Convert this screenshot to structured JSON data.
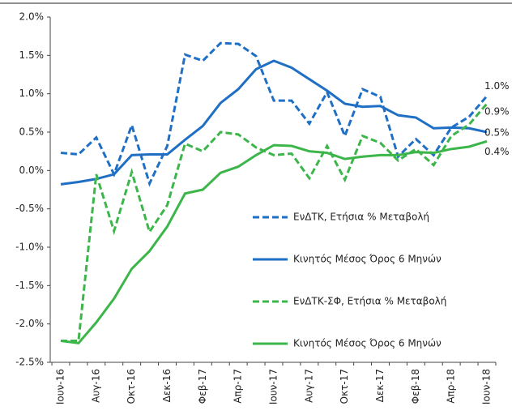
{
  "chart_data": {
    "type": "line",
    "categories": [
      "Ιουν-16",
      null,
      "Αυγ-16",
      null,
      "Οκτ-16",
      null,
      "Δεκ-16",
      null,
      "Φεβ-17",
      null,
      "Απρ-17",
      null,
      "Ιουν-17",
      null,
      "Αυγ-17",
      null,
      "Οκτ-17",
      null,
      "Δεκ-17",
      null,
      "Φεβ-18",
      null,
      "Απρ-18",
      null,
      "Ιουν-18"
    ],
    "series": [
      {
        "name": "ΕνΔΤΚ, Ετήσια % Μεταβολή",
        "color": "#1f6fc5",
        "dashed": true,
        "values": [
          0.23,
          0.21,
          0.43,
          -0.05,
          0.59,
          -0.17,
          0.32,
          1.51,
          1.43,
          1.66,
          1.65,
          1.49,
          0.91,
          0.91,
          0.61,
          1.02,
          0.45,
          1.06,
          0.96,
          0.18,
          0.41,
          0.2,
          0.56,
          0.7,
          0.97
        ],
        "value_labels": [
          null,
          null,
          null,
          null,
          null,
          null,
          null,
          null,
          null,
          null,
          null,
          null,
          null,
          null,
          null,
          null,
          null,
          null,
          null,
          null,
          null,
          null,
          null,
          null,
          "1.0%"
        ]
      },
      {
        "name": "Κινητός Μέσος Όρος 6 Μηνών",
        "color": "#1f6fc5",
        "dashed": false,
        "values": [
          -0.18,
          -0.15,
          -0.11,
          -0.05,
          0.2,
          0.21,
          0.21,
          0.4,
          0.58,
          0.88,
          1.06,
          1.32,
          1.43,
          1.34,
          1.19,
          1.04,
          0.87,
          0.83,
          0.84,
          0.72,
          0.69,
          0.55,
          0.56,
          0.55,
          0.5
        ],
        "value_labels": [
          null,
          null,
          null,
          null,
          null,
          null,
          null,
          null,
          null,
          null,
          null,
          null,
          null,
          null,
          null,
          null,
          null,
          null,
          null,
          null,
          null,
          null,
          null,
          null,
          "0.5%"
        ]
      },
      {
        "name": "ΕνΔΤΚ-ΣΦ, Ετήσια % Μεταβολή",
        "color": "#3cb54a",
        "dashed": true,
        "values": [
          -2.22,
          -2.22,
          -0.05,
          -0.79,
          -0.02,
          -0.8,
          -0.45,
          0.35,
          0.25,
          0.5,
          0.47,
          0.3,
          0.2,
          0.22,
          -0.1,
          0.32,
          -0.12,
          0.45,
          0.36,
          0.13,
          0.28,
          0.07,
          0.45,
          0.6,
          0.87
        ],
        "value_labels": [
          null,
          null,
          null,
          null,
          null,
          null,
          null,
          null,
          null,
          null,
          null,
          null,
          null,
          null,
          null,
          null,
          null,
          null,
          null,
          null,
          null,
          null,
          null,
          null,
          "0.9%"
        ]
      },
      {
        "name": "Κινητός Μέσος Όρος 6 Μηνών",
        "color": "#3cb54a",
        "dashed": false,
        "values": [
          -2.22,
          -2.25,
          -1.98,
          -1.67,
          -1.28,
          -1.05,
          -0.73,
          -0.3,
          -0.25,
          -0.03,
          0.05,
          0.2,
          0.33,
          0.32,
          0.25,
          0.23,
          0.15,
          0.18,
          0.2,
          0.2,
          0.24,
          0.23,
          0.28,
          0.31,
          0.38
        ],
        "value_labels": [
          null,
          null,
          null,
          null,
          null,
          null,
          null,
          null,
          null,
          null,
          null,
          null,
          null,
          null,
          null,
          null,
          null,
          null,
          null,
          null,
          null,
          null,
          null,
          null,
          "0.4%"
        ]
      }
    ],
    "ylim": [
      -2.5,
      2.0
    ],
    "yticks": [
      {
        "value": -2.5,
        "label": "-2.5%"
      },
      {
        "value": -2.0,
        "label": "-2.0%"
      },
      {
        "value": -1.5,
        "label": "-1.5%"
      },
      {
        "value": -1.0,
        "label": "-1.0%"
      },
      {
        "value": -0.5,
        "label": "-0.5%"
      },
      {
        "value": 0,
        "label": "0.0%"
      },
      {
        "value": 0.5,
        "label": "0.5%"
      },
      {
        "value": 1.0,
        "label": "1.0%"
      },
      {
        "value": 1.5,
        "label": "1.5%"
      },
      {
        "value": 2.0,
        "label": "2.0%"
      }
    ],
    "grid": false
  }
}
